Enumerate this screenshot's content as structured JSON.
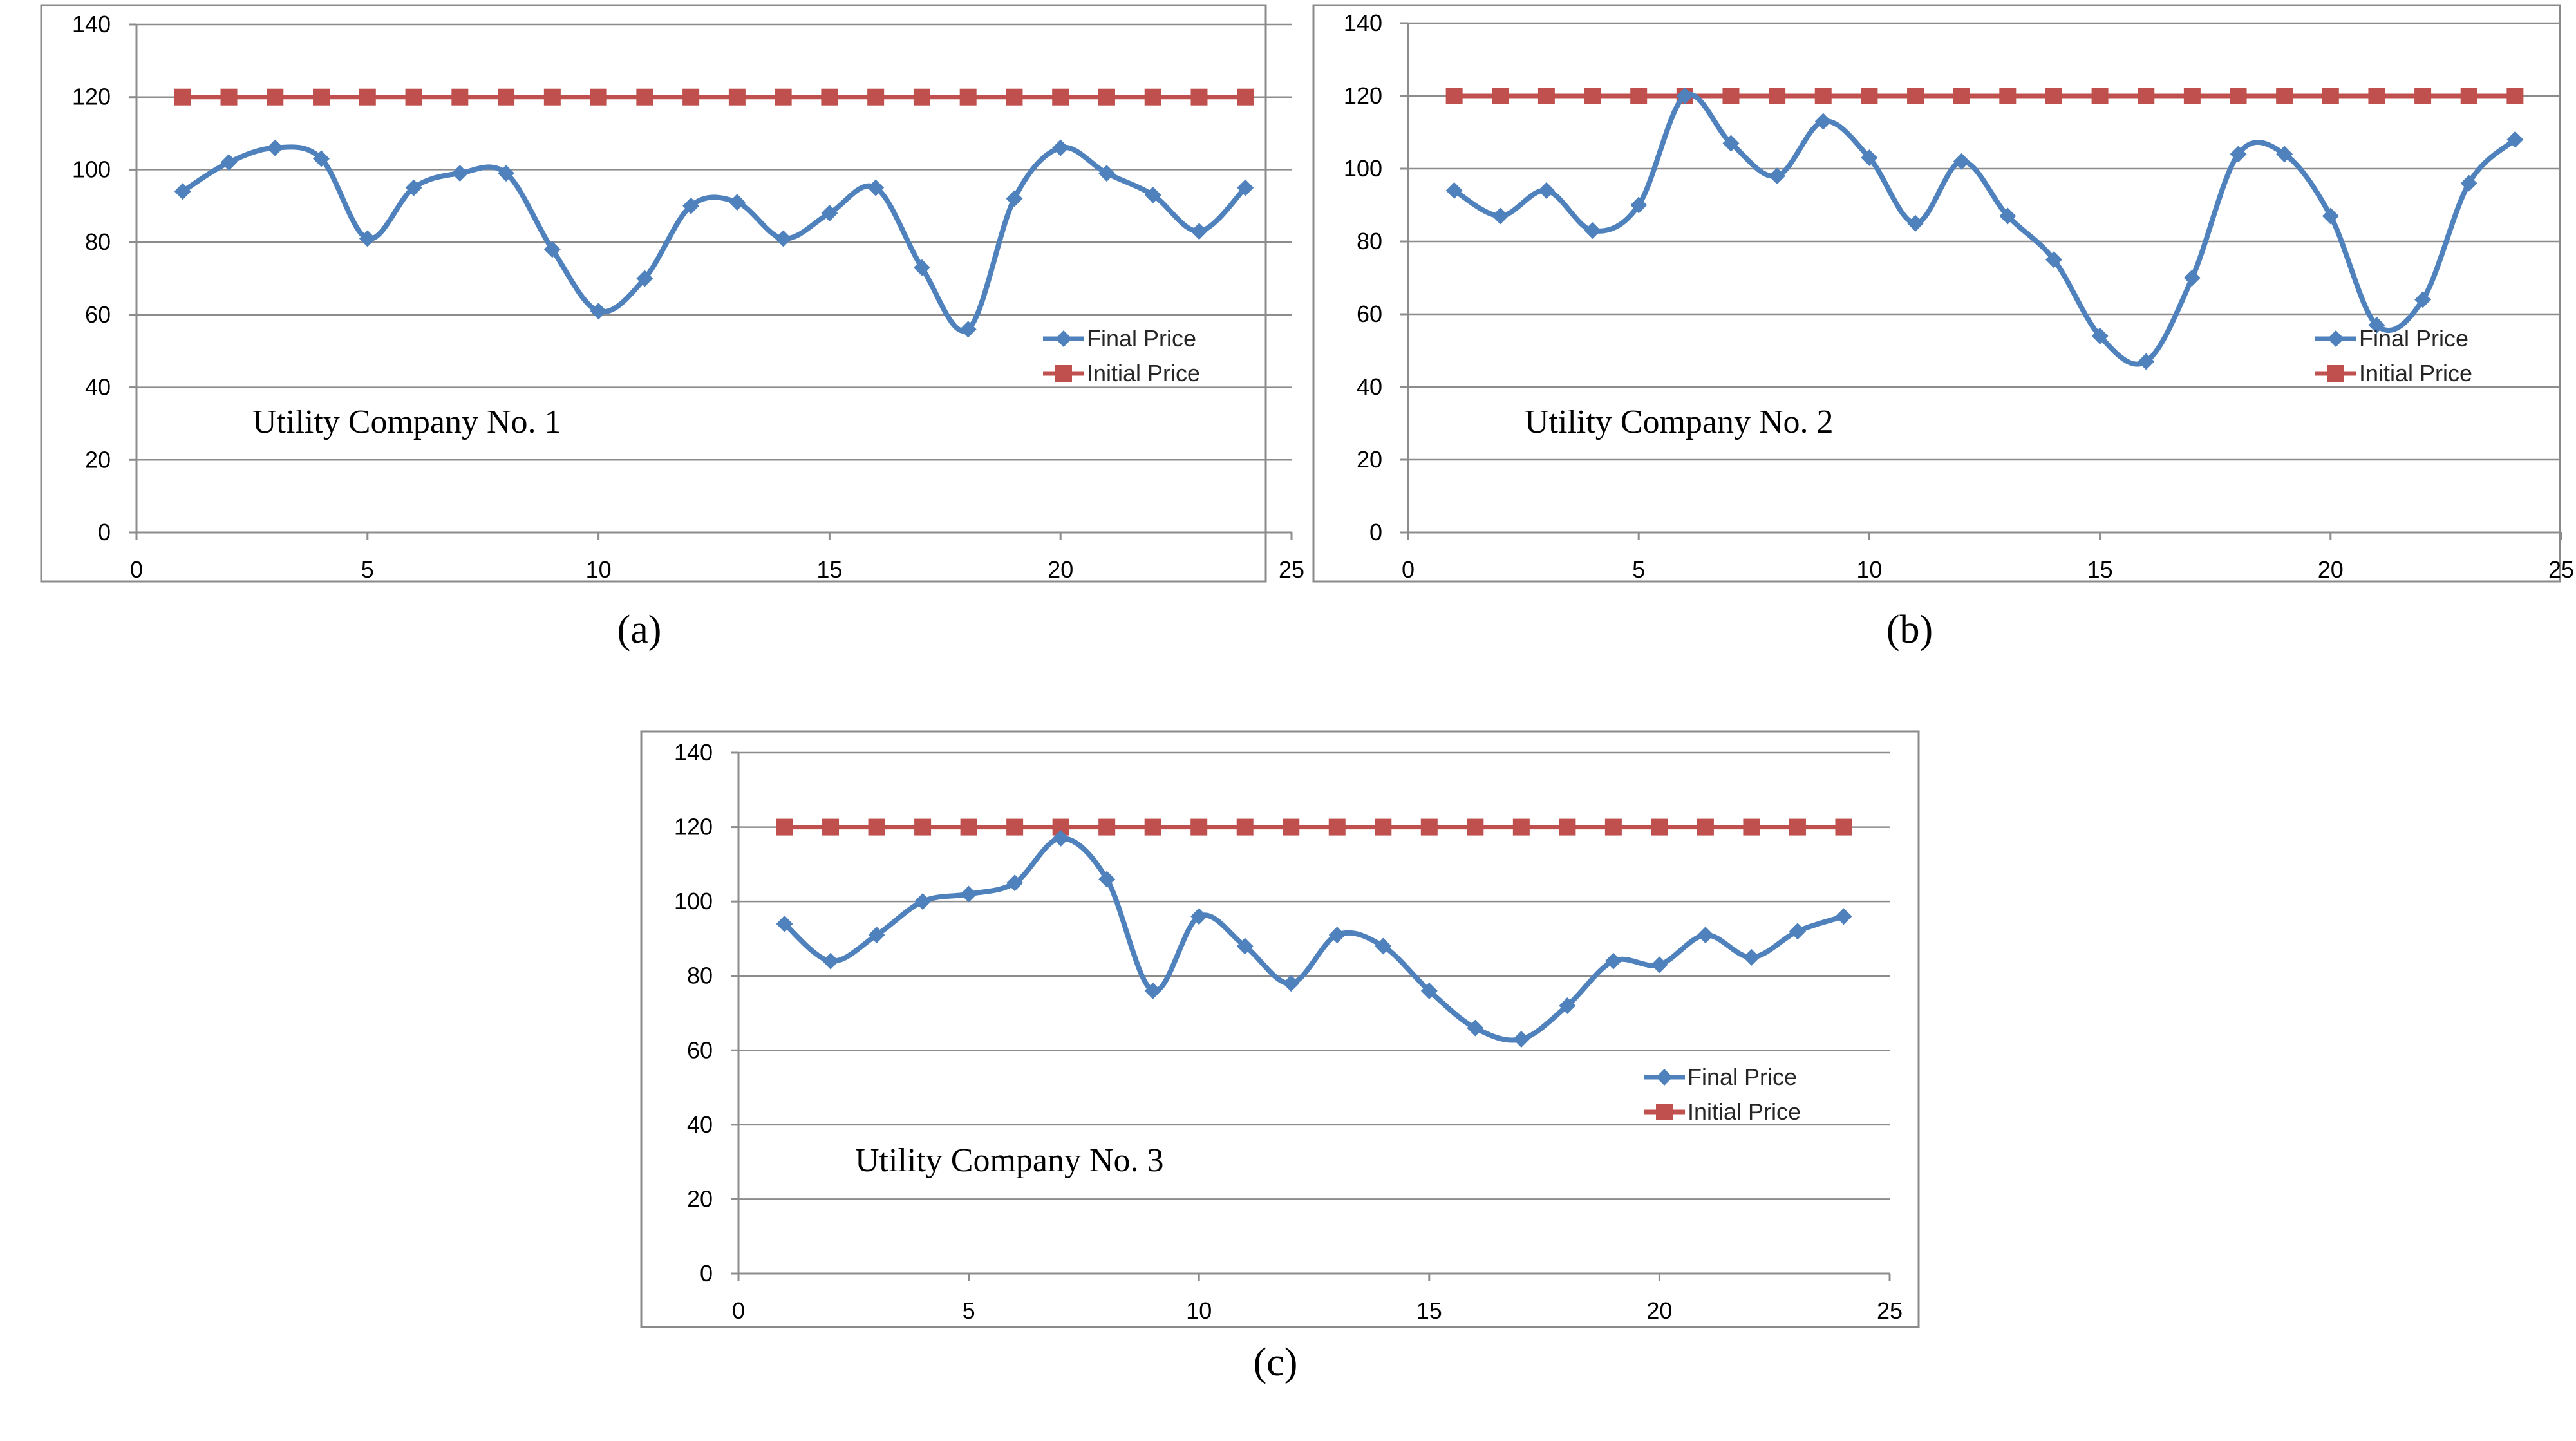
{
  "chart_data": [
    {
      "type": "line",
      "caption": "(a)",
      "title": "Utility Company No. 1",
      "xlabel": "",
      "ylabel": "",
      "xlim": [
        0,
        25
      ],
      "ylim": [
        0,
        140
      ],
      "x_ticks": [
        0,
        5,
        10,
        15,
        20,
        25
      ],
      "y_ticks": [
        0,
        20,
        40,
        60,
        80,
        100,
        120,
        140
      ],
      "grid": true,
      "legend_position": "bottom-right",
      "x": [
        1,
        2,
        3,
        4,
        5,
        6,
        7,
        8,
        9,
        10,
        11,
        12,
        13,
        14,
        15,
        16,
        17,
        18,
        19,
        20,
        21,
        22,
        23,
        24
      ],
      "series": [
        {
          "name": "Final Price",
          "color": "#4f81bd",
          "marker": "diamond",
          "smooth": true,
          "values": [
            94,
            102,
            106,
            103,
            81,
            95,
            99,
            99,
            78,
            61,
            70,
            90,
            91,
            81,
            88,
            95,
            73,
            56,
            92,
            106,
            99,
            93,
            83,
            95
          ]
        },
        {
          "name": "Initial Price",
          "color": "#c0504d",
          "marker": "square",
          "smooth": false,
          "values": [
            120,
            120,
            120,
            120,
            120,
            120,
            120,
            120,
            120,
            120,
            120,
            120,
            120,
            120,
            120,
            120,
            120,
            120,
            120,
            120,
            120,
            120,
            120,
            120
          ]
        }
      ]
    },
    {
      "type": "line",
      "caption": "(b)",
      "title": "Utility Company No. 2",
      "xlabel": "",
      "ylabel": "",
      "xlim": [
        0,
        25
      ],
      "ylim": [
        0,
        140
      ],
      "x_ticks": [
        0,
        5,
        10,
        15,
        20,
        25
      ],
      "y_ticks": [
        0,
        20,
        40,
        60,
        80,
        100,
        120,
        140
      ],
      "grid": true,
      "legend_position": "bottom-right",
      "x": [
        1,
        2,
        3,
        4,
        5,
        6,
        7,
        8,
        9,
        10,
        11,
        12,
        13,
        14,
        15,
        16,
        17,
        18,
        19,
        20,
        21,
        22,
        23,
        24
      ],
      "series": [
        {
          "name": "Final Price",
          "color": "#4f81bd",
          "marker": "diamond",
          "smooth": true,
          "values": [
            94,
            87,
            94,
            83,
            90,
            120,
            107,
            98,
            113,
            103,
            85,
            102,
            87,
            75,
            54,
            47,
            70,
            104,
            104,
            87,
            57,
            64,
            96,
            108
          ]
        },
        {
          "name": "Initial Price",
          "color": "#c0504d",
          "marker": "square",
          "smooth": false,
          "values": [
            120,
            120,
            120,
            120,
            120,
            120,
            120,
            120,
            120,
            120,
            120,
            120,
            120,
            120,
            120,
            120,
            120,
            120,
            120,
            120,
            120,
            120,
            120,
            120
          ]
        }
      ]
    },
    {
      "type": "line",
      "caption": "(c)",
      "title": "Utility Company No. 3",
      "xlabel": "",
      "ylabel": "",
      "xlim": [
        0,
        25
      ],
      "ylim": [
        0,
        140
      ],
      "x_ticks": [
        0,
        5,
        10,
        15,
        20,
        25
      ],
      "y_ticks": [
        0,
        20,
        40,
        60,
        80,
        100,
        120,
        140
      ],
      "grid": true,
      "legend_position": "bottom-right",
      "x": [
        1,
        2,
        3,
        4,
        5,
        6,
        7,
        8,
        9,
        10,
        11,
        12,
        13,
        14,
        15,
        16,
        17,
        18,
        19,
        20,
        21,
        22,
        23,
        24
      ],
      "series": [
        {
          "name": "Final Price",
          "color": "#4f81bd",
          "marker": "diamond",
          "smooth": true,
          "values": [
            94,
            84,
            91,
            100,
            102,
            105,
            117,
            106,
            76,
            96,
            88,
            78,
            91,
            88,
            76,
            66,
            63,
            72,
            84,
            83,
            91,
            85,
            92,
            96
          ]
        },
        {
          "name": "Initial Price",
          "color": "#c0504d",
          "marker": "square",
          "smooth": false,
          "values": [
            120,
            120,
            120,
            120,
            120,
            120,
            120,
            120,
            120,
            120,
            120,
            120,
            120,
            120,
            120,
            120,
            120,
            120,
            120,
            120,
            120,
            120,
            120,
            120
          ]
        }
      ]
    }
  ]
}
